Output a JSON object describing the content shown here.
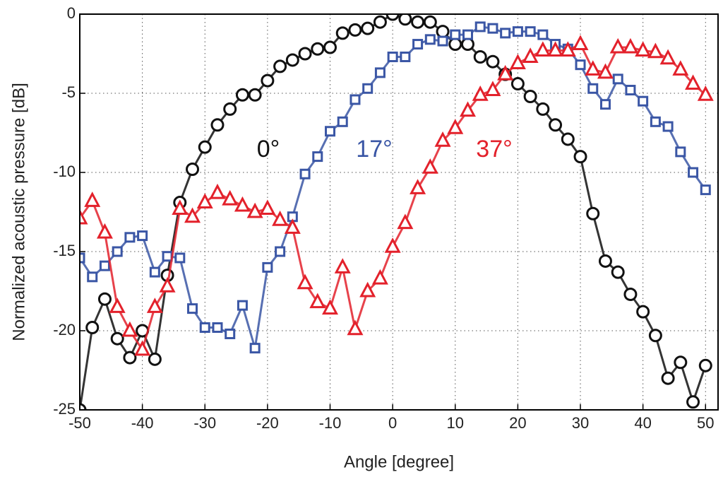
{
  "chart_data": {
    "type": "line",
    "x_label": "Angle [degree]",
    "y_label": "Normalized acoustic pressure [dB]",
    "x": [
      -50,
      -48,
      -46,
      -44,
      -42,
      -40,
      -38,
      -36,
      -34,
      -32,
      -30,
      -28,
      -26,
      -24,
      -22,
      -20,
      -18,
      -16,
      -14,
      -12,
      -10,
      -8,
      -6,
      -4,
      -2,
      0,
      2,
      4,
      6,
      8,
      10,
      12,
      14,
      16,
      18,
      20,
      22,
      24,
      26,
      28,
      30,
      32,
      34,
      36,
      38,
      40,
      42,
      44,
      46,
      48,
      50
    ],
    "series": [
      {
        "name": "0°",
        "color": "#111111",
        "marker": "circle",
        "values": [
          -25,
          -19.8,
          -18,
          -20.5,
          -21.7,
          -20,
          -21.8,
          -16.5,
          -11.9,
          -9.8,
          -8.4,
          -7,
          -6,
          -5.1,
          -5.1,
          -4.2,
          -3.3,
          -2.9,
          -2.5,
          -2.2,
          -2.1,
          -1.2,
          -1,
          -0.9,
          -0.5,
          0,
          -0.3,
          -0.5,
          -0.5,
          -1.1,
          -1.9,
          -1.9,
          -2.7,
          -3,
          -3.8,
          -4.4,
          -5.2,
          -6,
          -7,
          -7.9,
          -9,
          -12.6,
          -15.6,
          -16.3,
          -17.7,
          -18.8,
          -20.3,
          -23,
          -22,
          -24.5,
          -22.2
        ]
      },
      {
        "name": "17°",
        "color": "#3a56a5",
        "marker": "square",
        "values": [
          -15.4,
          -16.6,
          -15.9,
          -15,
          -14.1,
          -14,
          -16.3,
          -15.3,
          -15.4,
          -18.6,
          -19.8,
          -19.8,
          -20.2,
          -18.4,
          -21.1,
          -16,
          -15,
          -12.8,
          -10.1,
          -9,
          -7.4,
          -6.8,
          -5.4,
          -4.7,
          -3.7,
          -2.7,
          -2.7,
          -1.9,
          -1.6,
          -1.7,
          -1.3,
          -1.3,
          -0.8,
          -0.9,
          -1.2,
          -1.1,
          -1.1,
          -1.3,
          -1.9,
          -2.2,
          -3.2,
          -4.7,
          -5.7,
          -4.1,
          -4.8,
          -5.5,
          -6.8,
          -7.1,
          -8.7,
          -10,
          -11.1
        ]
      },
      {
        "name": "37°",
        "color": "#e3212b",
        "marker": "triangle",
        "values": [
          -12.9,
          -11.8,
          -13.8,
          -18.5,
          -20,
          -21.2,
          -18.5,
          -17.2,
          -12.3,
          -12.8,
          -11.9,
          -11.3,
          -11.7,
          -12.1,
          -12.5,
          -12.3,
          -13,
          -13.5,
          -17,
          -18.2,
          -18.6,
          -16,
          -19.9,
          -17.5,
          -16.7,
          -14.7,
          -13.2,
          -11,
          -9.7,
          -8,
          -7.2,
          -6.1,
          -5.1,
          -4.8,
          -3.8,
          -3.1,
          -2.7,
          -2.3,
          -2.3,
          -2.3,
          -1.9,
          -3.5,
          -3.7,
          -2.1,
          -2.1,
          -2.3,
          -2.4,
          -2.8,
          -3.5,
          -4.4,
          -5.1
        ]
      }
    ],
    "xlim": [
      -50,
      52
    ],
    "ylim": [
      -25,
      0
    ],
    "xticks": [
      -50,
      -40,
      -30,
      -20,
      -10,
      0,
      10,
      20,
      30,
      40,
      50
    ],
    "yticks": [
      -25,
      -20,
      -15,
      -10,
      -5,
      0
    ],
    "grid": true
  }
}
